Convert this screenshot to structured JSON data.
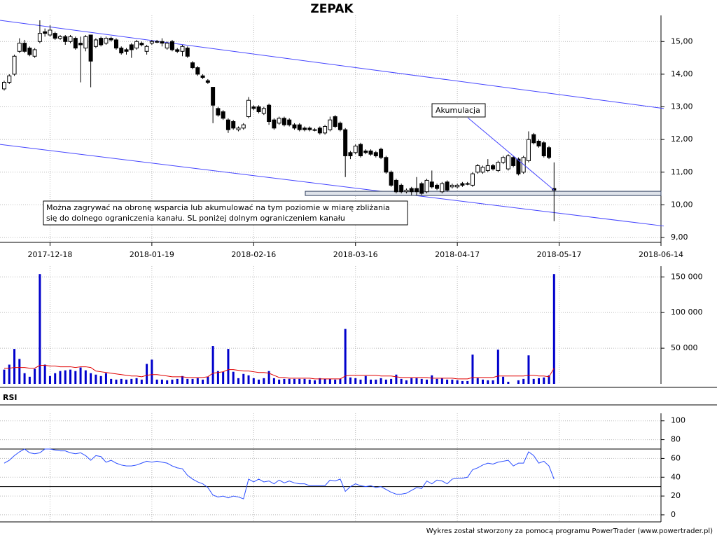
{
  "chart_data": [
    {
      "type": "candlestick",
      "title": "ZEPAK",
      "categories": [
        null,
        null,
        null,
        null,
        null,
        null,
        null,
        null,
        null,
        "2017-12-18",
        null,
        null,
        null,
        null,
        null,
        null,
        null,
        null,
        null,
        null,
        null,
        null,
        null,
        null,
        null,
        null,
        null,
        null,
        null,
        "2018-01-19",
        null,
        null,
        null,
        null,
        null,
        null,
        null,
        null,
        null,
        null,
        null,
        null,
        null,
        null,
        null,
        null,
        null,
        null,
        null,
        "2018-02-16",
        null,
        null,
        null,
        null,
        null,
        null,
        null,
        null,
        null,
        null,
        null,
        null,
        null,
        null,
        null,
        null,
        null,
        null,
        null,
        "2018-03-16",
        null,
        null,
        null,
        null,
        null,
        null,
        null,
        null,
        null,
        null,
        null,
        null,
        null,
        null,
        null,
        null,
        null,
        null,
        null,
        "2018-04-17",
        null,
        null,
        null,
        null,
        null,
        null,
        null,
        null,
        null,
        null,
        null,
        null,
        null,
        null,
        null,
        null,
        null,
        null,
        null,
        "2018-05-17",
        null,
        null,
        null,
        null,
        null,
        null,
        null,
        null,
        null,
        null,
        null,
        null,
        null,
        null,
        null,
        null,
        null,
        null,
        null,
        "2018-06-14"
      ],
      "open": [
        13.55,
        13.75,
        14.0,
        14.7,
        14.95,
        14.8,
        14.55,
        15.0,
        15.3,
        15.2,
        15.25,
        15.1,
        15.15,
        15.0,
        15.1,
        14.95,
        14.8,
        15.2,
        14.85,
        15.1,
        14.95,
        15.1,
        15.05,
        14.8,
        14.75,
        14.9,
        14.8,
        14.95,
        14.7,
        14.95,
        15.0,
        15.0,
        14.8,
        15.0,
        14.75,
        14.7,
        14.8,
        14.35,
        14.2,
        13.95,
        13.8,
        13.6,
        12.95,
        12.85,
        12.6,
        12.55,
        12.3,
        12.35,
        12.7,
        13.0,
        13.0,
        12.8,
        13.05,
        12.6,
        12.5,
        12.65,
        12.6,
        12.45,
        12.45,
        12.35,
        12.35,
        12.3,
        12.35,
        12.2,
        12.3,
        12.7,
        12.5,
        12.3,
        11.6,
        11.6,
        11.85,
        11.65,
        11.65,
        11.6,
        11.7,
        11.45,
        11.0,
        10.75,
        10.6,
        10.4,
        10.5,
        10.5,
        10.65,
        10.4,
        10.7,
        10.6,
        10.4,
        10.7,
        10.55,
        10.55,
        10.65,
        10.65,
        10.6,
        11.0,
        11.0,
        11.05,
        11.2,
        11.05,
        11.3,
        11.1,
        11.45,
        11.4,
        11.0,
        11.35,
        12.15,
        11.95,
        11.9,
        11.75,
        10.5,
        null,
        null,
        null,
        null,
        null,
        null,
        null,
        null,
        null,
        null,
        null,
        null,
        null,
        null,
        null,
        null,
        null,
        null,
        null,
        null,
        null
      ],
      "high": [
        13.8,
        14.0,
        14.6,
        15.1,
        15.05,
        14.85,
        14.8,
        15.65,
        15.4,
        15.5,
        15.3,
        15.2,
        15.2,
        15.2,
        15.15,
        15.15,
        15.2,
        15.2,
        15.1,
        15.15,
        15.15,
        15.15,
        15.1,
        14.85,
        14.8,
        14.95,
        15.05,
        15.0,
        14.9,
        15.05,
        15.05,
        15.1,
        15.0,
        15.05,
        14.8,
        14.9,
        14.85,
        14.4,
        14.25,
        14.0,
        13.85,
        13.6,
        13.0,
        12.9,
        12.65,
        12.6,
        12.4,
        12.5,
        13.3,
        13.05,
        13.05,
        13.0,
        13.1,
        12.65,
        12.7,
        12.7,
        12.65,
        12.5,
        12.5,
        12.4,
        12.4,
        12.35,
        12.4,
        12.45,
        12.7,
        12.75,
        12.55,
        12.35,
        11.65,
        11.85,
        11.9,
        11.7,
        11.7,
        11.65,
        11.75,
        11.5,
        11.05,
        10.8,
        10.65,
        10.5,
        10.55,
        10.85,
        10.7,
        10.8,
        11.05,
        10.65,
        10.7,
        10.75,
        10.65,
        10.65,
        10.7,
        10.7,
        11.0,
        11.25,
        11.2,
        11.4,
        11.25,
        11.35,
        11.5,
        11.55,
        11.5,
        11.45,
        11.5,
        12.25,
        12.2,
        12.0,
        11.95,
        11.8,
        11.3,
        null,
        null,
        null,
        null,
        null,
        null,
        null,
        null,
        null,
        null,
        null,
        null,
        null,
        null,
        null,
        null,
        null,
        null,
        null,
        null,
        null
      ],
      "low": [
        13.5,
        13.7,
        13.95,
        14.65,
        14.65,
        14.55,
        14.5,
        14.95,
        15.15,
        15.15,
        15.05,
        15.05,
        14.9,
        14.95,
        14.75,
        13.75,
        14.7,
        13.6,
        14.8,
        14.85,
        14.9,
        15.0,
        14.75,
        14.6,
        14.6,
        14.5,
        14.75,
        14.85,
        14.6,
        14.9,
        14.95,
        14.85,
        14.75,
        14.7,
        14.65,
        14.55,
        14.5,
        14.15,
        13.95,
        13.85,
        13.7,
        12.5,
        12.7,
        12.6,
        12.2,
        12.3,
        12.25,
        12.3,
        12.65,
        12.9,
        12.8,
        12.75,
        12.45,
        12.3,
        12.45,
        12.4,
        12.4,
        12.3,
        12.25,
        12.25,
        12.25,
        12.25,
        12.15,
        12.15,
        12.25,
        12.35,
        12.25,
        10.85,
        11.4,
        11.55,
        11.45,
        11.55,
        11.5,
        11.45,
        11.4,
        10.95,
        10.55,
        10.35,
        10.35,
        10.35,
        10.3,
        10.3,
        10.3,
        10.35,
        10.5,
        10.45,
        10.35,
        10.4,
        10.5,
        10.5,
        10.55,
        10.6,
        10.55,
        10.95,
        10.95,
        11.0,
        11.05,
        11.0,
        11.25,
        11.05,
        11.15,
        10.9,
        10.95,
        11.3,
        11.85,
        11.75,
        11.45,
        11.4,
        9.5,
        null,
        null,
        null,
        null,
        null,
        null,
        null,
        null,
        null,
        null,
        null,
        null,
        null,
        null,
        null,
        null,
        null,
        null,
        null,
        null,
        null
      ],
      "close": [
        13.75,
        13.95,
        14.55,
        14.95,
        14.7,
        14.6,
        14.75,
        15.25,
        15.25,
        15.35,
        15.1,
        15.15,
        15.0,
        15.15,
        14.8,
        14.9,
        15.15,
        14.4,
        15.05,
        14.9,
        15.1,
        15.05,
        14.8,
        14.65,
        14.7,
        14.75,
        15.0,
        14.9,
        14.85,
        15.0,
        15.0,
        14.95,
        14.95,
        14.75,
        14.7,
        14.85,
        14.55,
        14.2,
        14.0,
        13.9,
        13.75,
        13.05,
        12.75,
        12.65,
        12.3,
        12.35,
        12.35,
        12.45,
        13.2,
        12.95,
        12.85,
        12.95,
        12.55,
        12.35,
        12.65,
        12.45,
        12.45,
        12.35,
        12.3,
        12.3,
        12.3,
        12.3,
        12.2,
        12.4,
        12.6,
        12.4,
        12.3,
        11.5,
        11.5,
        11.8,
        11.5,
        11.6,
        11.55,
        11.5,
        11.45,
        11.0,
        10.6,
        10.4,
        10.4,
        10.45,
        10.4,
        10.4,
        10.35,
        10.75,
        10.55,
        10.5,
        10.65,
        10.45,
        10.6,
        10.6,
        10.6,
        10.65,
        10.95,
        11.2,
        11.15,
        11.2,
        11.1,
        11.3,
        11.45,
        11.5,
        11.2,
        10.95,
        11.45,
        12.0,
        11.9,
        11.8,
        11.5,
        11.45,
        10.45,
        null,
        null,
        null,
        null,
        null,
        null,
        null,
        null,
        null,
        null,
        null,
        null,
        null,
        null,
        null,
        null,
        null,
        null,
        null,
        null,
        null
      ],
      "ylim": [
        8.85,
        15.8
      ],
      "yticks": [
        {
          "value": 9,
          "label": "9,00"
        },
        {
          "value": 10,
          "label": "10,00"
        },
        {
          "value": 11,
          "label": "11,00"
        },
        {
          "value": 12,
          "label": "12,00"
        },
        {
          "value": 13,
          "label": "13,00"
        },
        {
          "value": 14,
          "label": "14,00"
        },
        {
          "value": 15,
          "label": "15,00"
        }
      ],
      "grid": true,
      "color": "#000000",
      "channel_upper": [
        15.65,
        12.95
      ],
      "channel_lower": [
        11.85,
        9.35
      ],
      "channel_color": "#4646ff",
      "support": 10.35,
      "label": "Akumulacja",
      "note": [
        "Można zagrywać na obronę wsparcia lub akumulować na tym poziomie w miarę zbliżania",
        "się do dolnego ograniczenia kanału. SL poniżej dolnym ograniczeniem kanału"
      ]
    },
    {
      "type": "bar",
      "values": [
        20000,
        27000,
        49000,
        35000,
        15000,
        10000,
        21000,
        154000,
        27000,
        11000,
        15000,
        18000,
        19000,
        20000,
        18000,
        23000,
        19000,
        15000,
        13000,
        11000,
        15000,
        7000,
        6000,
        7000,
        6000,
        7000,
        8000,
        6000,
        28000,
        34000,
        6000,
        6000,
        5000,
        6000,
        7000,
        11000,
        7000,
        7000,
        8000,
        6000,
        10000,
        53000,
        18000,
        17000,
        49000,
        17000,
        8000,
        14000,
        12000,
        8000,
        6000,
        8000,
        18000,
        8000,
        6000,
        7000,
        7000,
        7000,
        7000,
        7000,
        6000,
        5000,
        8000,
        7000,
        7000,
        6000,
        7000,
        77000,
        9000,
        8000,
        6000,
        11000,
        6000,
        6000,
        8000,
        6000,
        7000,
        13000,
        7000,
        5000,
        8000,
        8000,
        7000,
        6000,
        12000,
        7000,
        8000,
        6000,
        6000,
        5000,
        4000,
        4000,
        41000,
        8000,
        6000,
        5000,
        5000,
        48000,
        10000,
        3000,
        null,
        5000,
        7000,
        40000,
        7000,
        8000,
        9000,
        12000,
        154000
      ],
      "average": [
        22000,
        22000,
        23000,
        23000,
        23000,
        22000,
        22000,
        26000,
        26000,
        25000,
        25000,
        24000,
        24000,
        24000,
        23000,
        24000,
        24000,
        23000,
        18000,
        17000,
        16000,
        15000,
        14000,
        13000,
        12000,
        11000,
        11000,
        10000,
        12000,
        13000,
        13000,
        12000,
        11000,
        10000,
        10000,
        10000,
        9000,
        9000,
        9000,
        9000,
        10000,
        15000,
        16000,
        17000,
        20000,
        20000,
        19000,
        18000,
        18000,
        17000,
        16000,
        16000,
        15000,
        12000,
        9000,
        9000,
        8000,
        8000,
        8000,
        8000,
        8000,
        7000,
        7000,
        7000,
        7000,
        7000,
        7000,
        11000,
        12000,
        12000,
        12000,
        12000,
        12000,
        12000,
        11000,
        11000,
        11000,
        10000,
        9000,
        9000,
        9000,
        9000,
        9000,
        9000,
        8000,
        8000,
        8000,
        8000,
        8000,
        7000,
        7000,
        7000,
        9000,
        9000,
        9000,
        9000,
        9000,
        11000,
        11000,
        11000,
        11000,
        11000,
        11000,
        12000,
        12000,
        11000,
        11000,
        10000,
        22000
      ],
      "color": "#0000cc",
      "average_color": "#e00000",
      "ylim": [
        0,
        165000
      ],
      "yticks": [
        {
          "value": 50000,
          "label": "50 000"
        },
        {
          "value": 100000,
          "label": "100 000"
        },
        {
          "value": 150000,
          "label": "150 000"
        }
      ],
      "grid": true
    },
    {
      "type": "line",
      "title": "RSI",
      "values": [
        55,
        58,
        63,
        67,
        70,
        66,
        65,
        66,
        70,
        70,
        69,
        68,
        68,
        66,
        65,
        66,
        63,
        58,
        63,
        62,
        56,
        58,
        55,
        53,
        52,
        52,
        53,
        55,
        57,
        56,
        57,
        56,
        55,
        52,
        50,
        49,
        42,
        38,
        35,
        33,
        29,
        21,
        19,
        20,
        18,
        20,
        19,
        17,
        38,
        35,
        38,
        35,
        36,
        33,
        37,
        34,
        36,
        34,
        33,
        33,
        31,
        31,
        31,
        31,
        37,
        36,
        38,
        25,
        30,
        33,
        31,
        30,
        31,
        29,
        30,
        27,
        24,
        22,
        22,
        23,
        26,
        29,
        28,
        36,
        33,
        37,
        36,
        33,
        38,
        39,
        39,
        40,
        48,
        50,
        53,
        55,
        54,
        56,
        57,
        58,
        52,
        55,
        55,
        67,
        63,
        55,
        57,
        52,
        38
      ],
      "color": "#2a4dff",
      "levels": [
        30,
        70
      ],
      "ylim": [
        -7.5,
        108
      ],
      "yticks": [
        0,
        20,
        40,
        60,
        80,
        100
      ],
      "grid": true
    }
  ],
  "footer": "Wykres został stworzony za pomocą programu PowerTrader (www.powertrader.pl)"
}
